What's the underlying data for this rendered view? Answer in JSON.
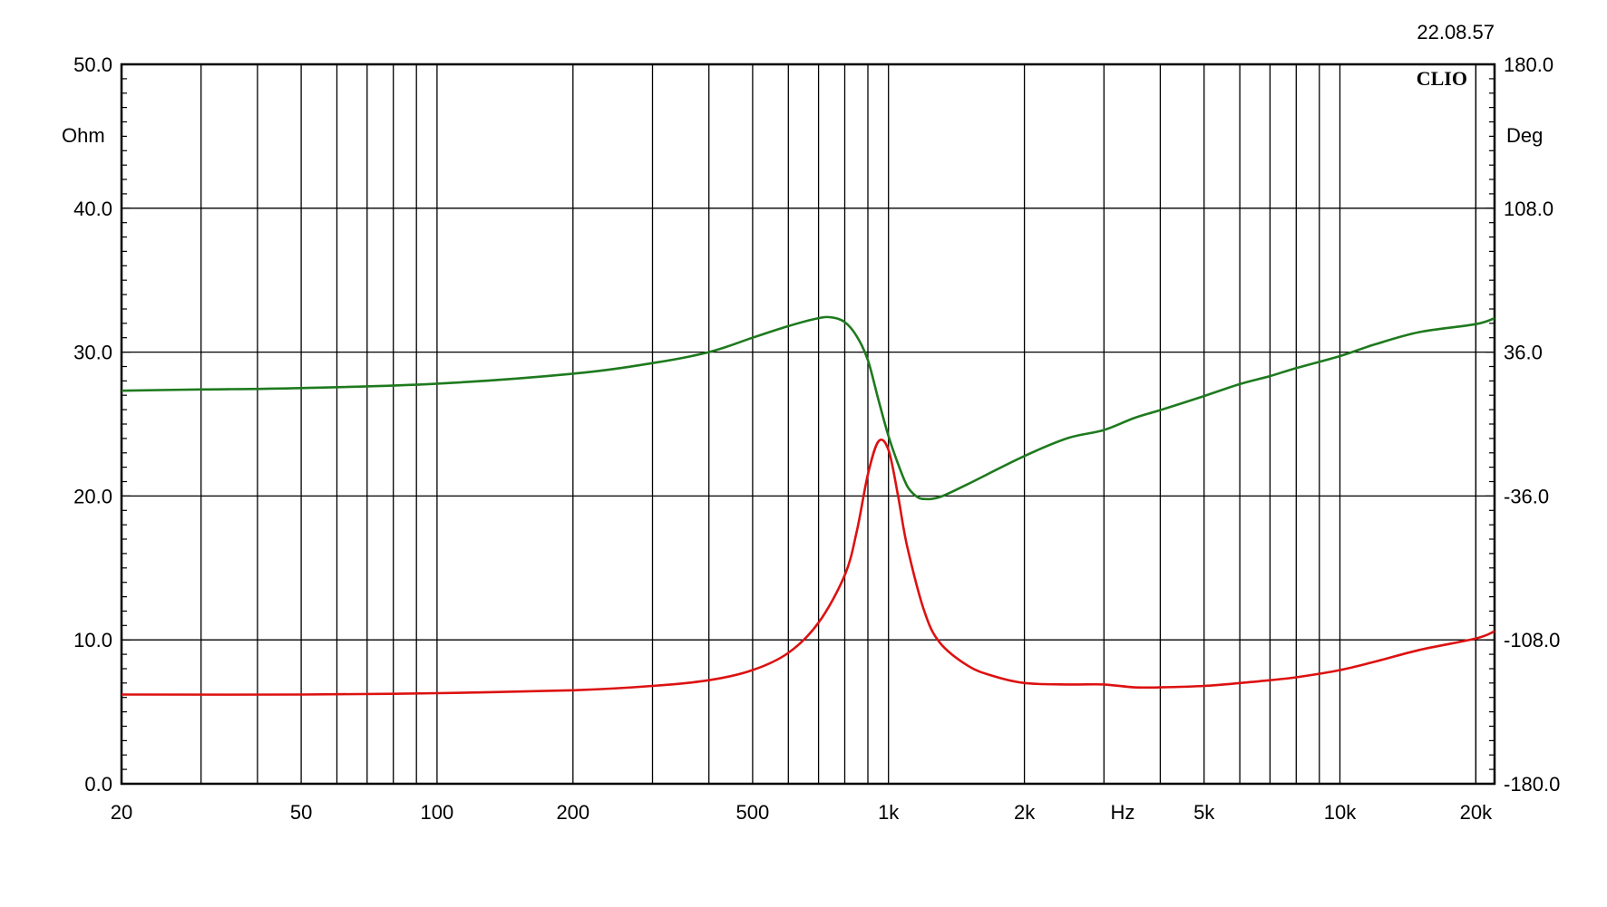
{
  "header": {
    "timestamp": "22.08.57",
    "brand": "CLIO"
  },
  "colors": {
    "impedance": "#dd1111",
    "phase": "#1e7a1e",
    "grid": "#000000",
    "background": "#ffffff"
  },
  "chart_data": {
    "type": "line",
    "title": "",
    "xlabel": "Hz",
    "ylabel_left": "Ohm",
    "ylabel_right": "Deg",
    "x_scale": "log",
    "xlim": [
      20,
      22000
    ],
    "ylim": [
      0,
      50
    ],
    "y2lim": [
      -180,
      180
    ],
    "grid": true,
    "x_tick_labels": [
      {
        "value": 20,
        "label": "20"
      },
      {
        "value": 50,
        "label": "50"
      },
      {
        "value": 100,
        "label": "100"
      },
      {
        "value": 200,
        "label": "200"
      },
      {
        "value": 500,
        "label": "500"
      },
      {
        "value": 1000,
        "label": "1k"
      },
      {
        "value": 2000,
        "label": "2k"
      },
      {
        "value": 5000,
        "label": "5k"
      },
      {
        "value": 10000,
        "label": "10k"
      },
      {
        "value": 20000,
        "label": "20k"
      }
    ],
    "x_unit_label": {
      "value": 3300,
      "label": "Hz"
    },
    "y_ticks_left": [
      {
        "value": 0,
        "label": "0.0"
      },
      {
        "value": 10,
        "label": "10.0"
      },
      {
        "value": 20,
        "label": "20.0"
      },
      {
        "value": 30,
        "label": "30.0"
      },
      {
        "value": 40,
        "label": "40.0"
      },
      {
        "value": 50,
        "label": "50.0"
      }
    ],
    "y_ticks_right": [
      {
        "value": -180,
        "label": "-180.0"
      },
      {
        "value": -108,
        "label": "-108.0"
      },
      {
        "value": -36,
        "label": "-36.0"
      },
      {
        "value": 36,
        "label": "36.0"
      },
      {
        "value": 108,
        "label": "108.0"
      },
      {
        "value": 180,
        "label": "180.0"
      }
    ],
    "series": [
      {
        "axis": "left",
        "color": "#dd1111",
        "x": [
          20,
          50,
          100,
          200,
          300,
          400,
          500,
          600,
          700,
          800,
          850,
          900,
          950,
          1000,
          1050,
          1100,
          1200,
          1300,
          1500,
          1700,
          2000,
          2500,
          3000,
          3500,
          4000,
          5000,
          6000,
          7000,
          8000,
          10000,
          12000,
          15000,
          20000,
          22000
        ],
        "y": [
          6.2,
          6.2,
          6.3,
          6.5,
          6.8,
          7.2,
          7.9,
          9.1,
          11.2,
          14.5,
          17.5,
          21.5,
          23.8,
          23.2,
          20.0,
          16.5,
          12.0,
          9.8,
          8.2,
          7.5,
          7.0,
          6.9,
          6.9,
          6.7,
          6.7,
          6.8,
          7.0,
          7.2,
          7.4,
          7.9,
          8.5,
          9.3,
          10.1,
          10.6
        ]
      },
      {
        "axis": "right",
        "color": "#1e7a1e",
        "x": [
          20,
          30,
          50,
          100,
          200,
          300,
          400,
          500,
          600,
          700,
          750,
          800,
          850,
          900,
          950,
          1000,
          1050,
          1100,
          1150,
          1200,
          1300,
          1500,
          2000,
          2500,
          3000,
          3500,
          4000,
          5000,
          6000,
          7000,
          8000,
          10000,
          12000,
          15000,
          20000,
          22000
        ],
        "y": [
          16.7,
          17.3,
          18.0,
          20.2,
          25.2,
          30.5,
          36.0,
          43.2,
          49.0,
          53.0,
          53.3,
          51.0,
          44.0,
          32.0,
          12.0,
          -6.0,
          -20.0,
          -31.0,
          -36.0,
          -37.5,
          -36.5,
          -30.0,
          -16.0,
          -7.0,
          -3.0,
          3.0,
          7.0,
          14.0,
          20.0,
          24.0,
          28.0,
          34.0,
          40.0,
          46.0,
          50.0,
          53.0
        ]
      }
    ]
  }
}
